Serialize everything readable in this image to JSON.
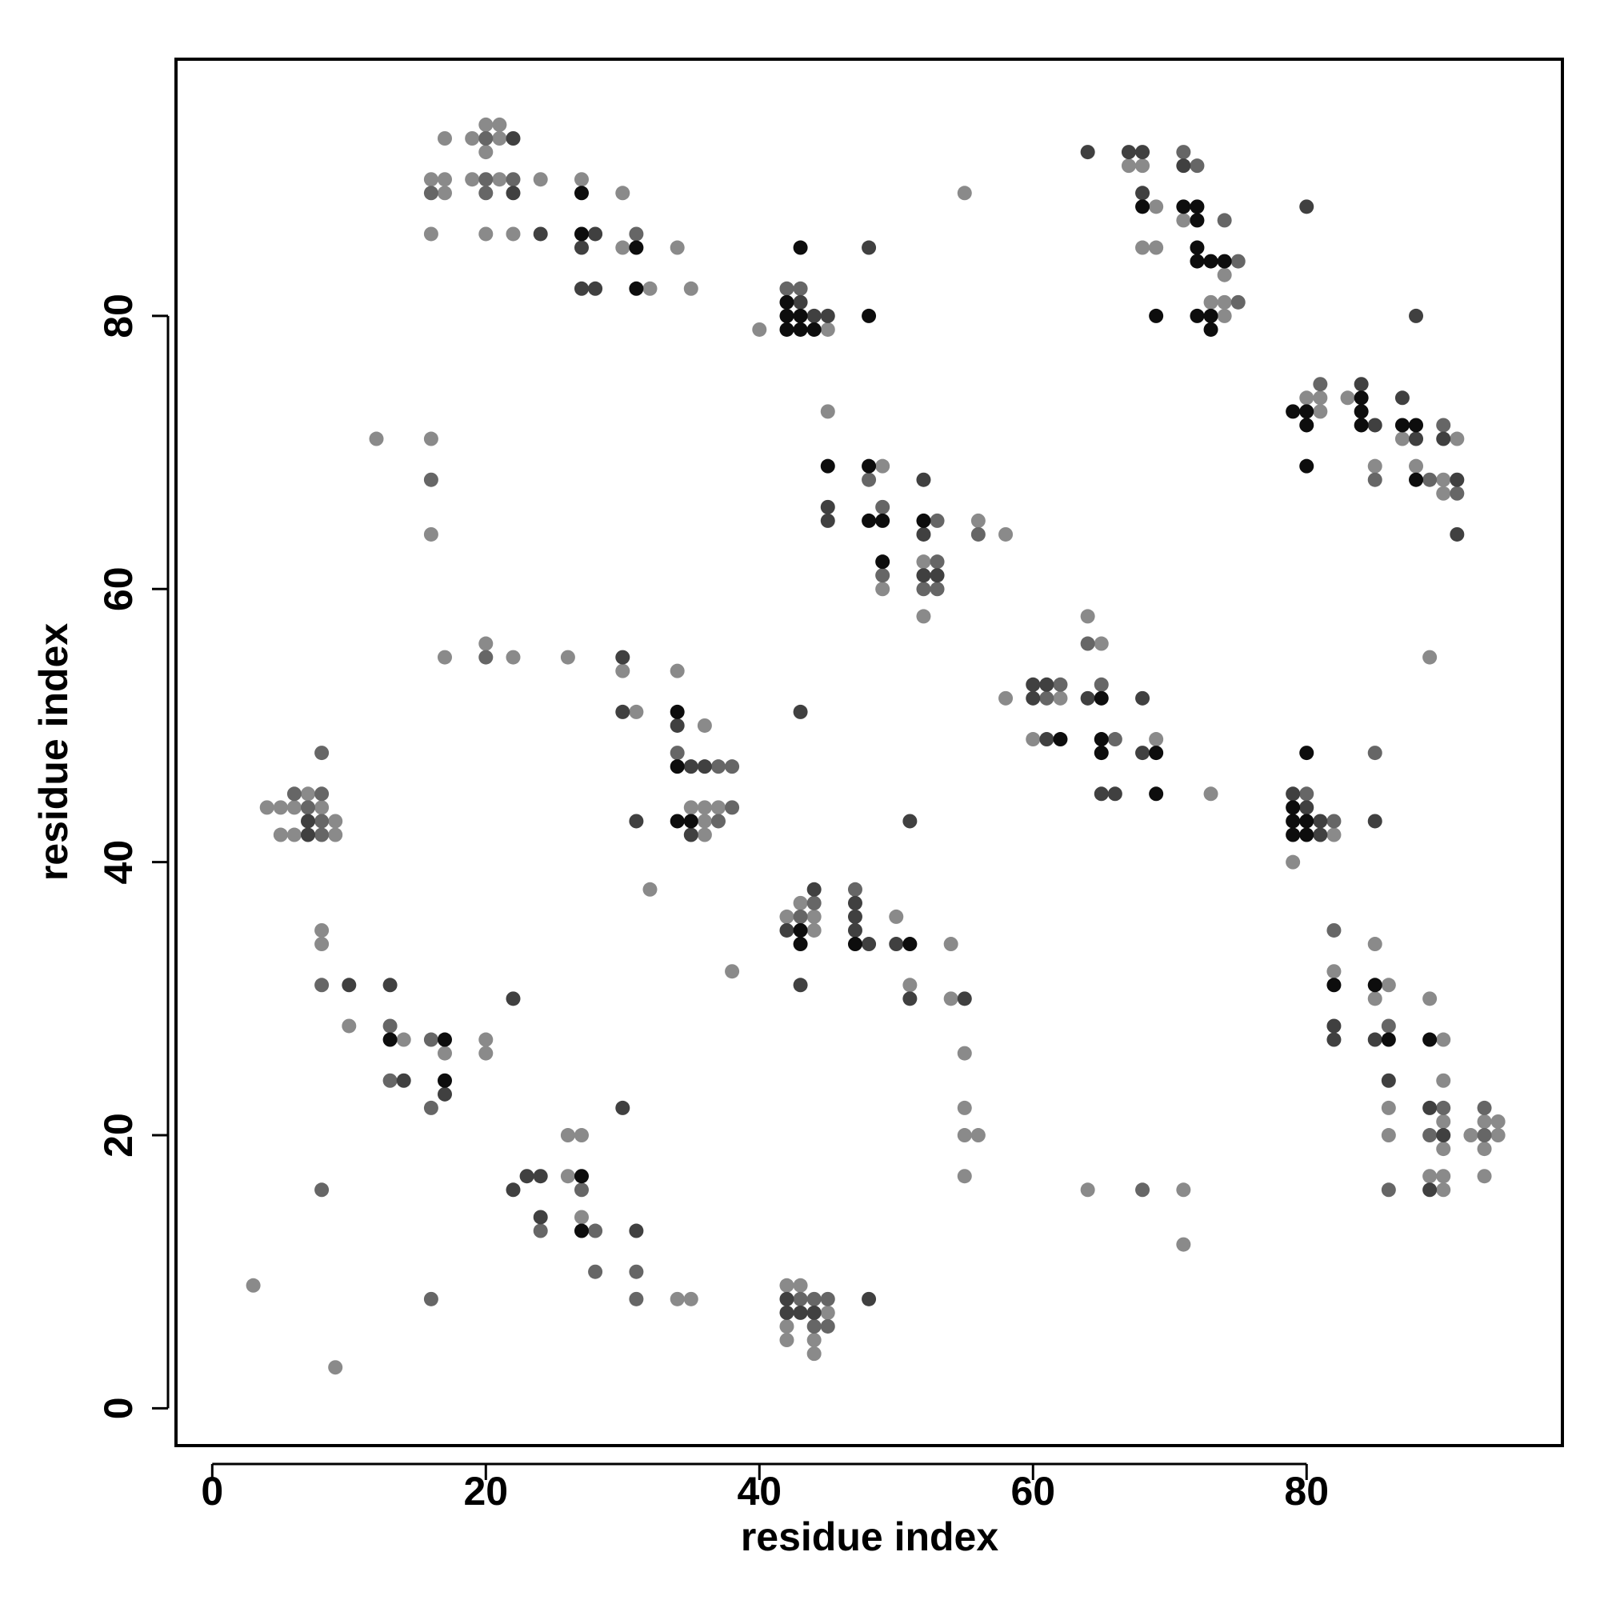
{
  "chart_data": {
    "type": "scatter",
    "x_label": "residue index",
    "y_label": "residue index",
    "xlim": [
      -2.65,
      98.7
    ],
    "ylim": [
      -2.73,
      98.8
    ],
    "xticks": [
      0,
      20,
      40,
      60,
      80
    ],
    "yticks": [
      0,
      20,
      40,
      60,
      80
    ],
    "series": [
      {
        "color": "#8a8a8a",
        "x": [
          17,
          19,
          20,
          21,
          21,
          20,
          16,
          17,
          19,
          21,
          24,
          27,
          17,
          30,
          16,
          20,
          22,
          30,
          34,
          32,
          35,
          40,
          45,
          67,
          68,
          69,
          71,
          68,
          69,
          74,
          73,
          74,
          74,
          55,
          80,
          81,
          83,
          81,
          87,
          91,
          85,
          88,
          90,
          90,
          45,
          49,
          56,
          58,
          52,
          49,
          52,
          12,
          16,
          16,
          17,
          20,
          22,
          26,
          30,
          34,
          89,
          31,
          36,
          35,
          36,
          37,
          36,
          36,
          32,
          38,
          64,
          65,
          58,
          62,
          60,
          69,
          73,
          82,
          79,
          7,
          4,
          5,
          6,
          8,
          9,
          5,
          6,
          9,
          43,
          42,
          44,
          50,
          44,
          54,
          51,
          54,
          55,
          55,
          55,
          56,
          55,
          8,
          8,
          10,
          14,
          20,
          17,
          20,
          26,
          27,
          26,
          27,
          34,
          35,
          3,
          9,
          42,
          43,
          45,
          42,
          42,
          44,
          44,
          64,
          71,
          71,
          82,
          85,
          86,
          85,
          89,
          90,
          90,
          86,
          90,
          93,
          94,
          86,
          92,
          94,
          90,
          93,
          89,
          90,
          93,
          90
        ],
        "y": [
          93,
          93,
          94,
          94,
          93,
          92,
          90,
          90,
          90,
          90,
          90,
          90,
          89,
          89,
          86,
          86,
          86,
          85,
          85,
          82,
          82,
          79,
          79,
          91,
          91,
          88,
          87,
          85,
          85,
          83,
          81,
          81,
          80,
          89,
          74,
          74,
          74,
          73,
          71,
          71,
          69,
          69,
          68,
          67,
          73,
          69,
          65,
          64,
          62,
          60,
          58,
          71,
          71,
          64,
          55,
          56,
          55,
          55,
          54,
          54,
          55,
          51,
          50,
          44,
          44,
          44,
          43,
          42,
          38,
          32,
          58,
          56,
          52,
          52,
          49,
          49,
          45,
          42,
          40,
          45,
          44,
          44,
          44,
          44,
          43,
          42,
          42,
          42,
          37,
          36,
          36,
          36,
          35,
          34,
          31,
          30,
          26,
          22,
          20,
          20,
          17,
          35,
          34,
          28,
          27,
          27,
          26,
          26,
          20,
          20,
          17,
          14,
          8,
          8,
          9,
          3,
          9,
          9,
          7,
          6,
          5,
          5,
          4,
          16,
          16,
          12,
          32,
          34,
          31,
          30,
          30,
          27,
          24,
          22,
          21,
          21,
          21,
          20,
          20,
          20,
          19,
          19,
          17,
          17,
          17,
          16
        ]
      },
      {
        "color": "#666666",
        "x": [
          20,
          20,
          22,
          16,
          20,
          31,
          42,
          43,
          71,
          72,
          74,
          75,
          75,
          81,
          90,
          85,
          89,
          91,
          48,
          49,
          53,
          56,
          53,
          49,
          52,
          53,
          16,
          20,
          34,
          37,
          38,
          38,
          37,
          64,
          62,
          65,
          61,
          66,
          85,
          80,
          82,
          8,
          6,
          8,
          7,
          8,
          8,
          47,
          44,
          43,
          8,
          13,
          16,
          13,
          16,
          8,
          27,
          24,
          28,
          28,
          31,
          16,
          31,
          43,
          44,
          45,
          44,
          45,
          68,
          82,
          86,
          90,
          93,
          89,
          93,
          86
        ],
        "y": [
          93,
          90,
          90,
          89,
          89,
          86,
          82,
          82,
          92,
          91,
          87,
          84,
          81,
          75,
          72,
          68,
          68,
          67,
          68,
          66,
          65,
          64,
          62,
          61,
          60,
          60,
          68,
          55,
          48,
          47,
          47,
          44,
          43,
          56,
          53,
          53,
          52,
          49,
          48,
          45,
          43,
          48,
          45,
          45,
          44,
          43,
          42,
          38,
          37,
          36,
          31,
          28,
          27,
          24,
          22,
          16,
          16,
          13,
          13,
          10,
          10,
          8,
          8,
          8,
          8,
          8,
          6,
          6,
          16,
          35,
          28,
          22,
          22,
          20,
          20,
          16
        ]
      },
      {
        "color": "#404040",
        "x": [
          22,
          22,
          24,
          28,
          27,
          27,
          28,
          43,
          44,
          45,
          48,
          64,
          67,
          68,
          71,
          68,
          84,
          87,
          85,
          88,
          90,
          91,
          91,
          80,
          88,
          52,
          45,
          45,
          52,
          52,
          53,
          30,
          30,
          43,
          34,
          35,
          36,
          31,
          35,
          61,
          60,
          60,
          64,
          68,
          61,
          68,
          65,
          66,
          79,
          80,
          81,
          85,
          81,
          51,
          7,
          7,
          44,
          47,
          47,
          42,
          47,
          48,
          50,
          43,
          51,
          55,
          10,
          13,
          22,
          14,
          17,
          30,
          23,
          24,
          22,
          24,
          31,
          42,
          48,
          42,
          43,
          44,
          82,
          82,
          85,
          86,
          89,
          90,
          89
        ],
        "y": [
          93,
          89,
          86,
          86,
          85,
          82,
          82,
          81,
          80,
          80,
          85,
          92,
          92,
          92,
          91,
          89,
          75,
          74,
          72,
          71,
          71,
          68,
          64,
          88,
          80,
          68,
          66,
          65,
          64,
          61,
          61,
          55,
          51,
          51,
          50,
          47,
          47,
          43,
          42,
          53,
          53,
          52,
          52,
          52,
          49,
          48,
          45,
          45,
          45,
          44,
          43,
          43,
          42,
          43,
          43,
          42,
          38,
          37,
          36,
          35,
          35,
          34,
          34,
          31,
          30,
          30,
          31,
          31,
          30,
          24,
          23,
          22,
          17,
          17,
          16,
          14,
          13,
          8,
          8,
          7,
          7,
          7,
          28,
          27,
          27,
          24,
          22,
          20,
          16
        ]
      },
      {
        "color": "#0d0d0d",
        "x": [
          27,
          27,
          31,
          31,
          43,
          42,
          42,
          43,
          48,
          42,
          43,
          44,
          68,
          71,
          72,
          72,
          72,
          73,
          72,
          74,
          69,
          72,
          73,
          73,
          84,
          79,
          80,
          84,
          80,
          84,
          87,
          88,
          80,
          88,
          45,
          48,
          48,
          49,
          52,
          49,
          34,
          34,
          34,
          35,
          62,
          65,
          65,
          65,
          69,
          69,
          80,
          79,
          79,
          80,
          79,
          80,
          43,
          43,
          47,
          51,
          13,
          17,
          17,
          27,
          27,
          82,
          85,
          86,
          89
        ],
        "y": [
          89,
          86,
          85,
          82,
          85,
          81,
          80,
          80,
          80,
          79,
          79,
          79,
          88,
          88,
          88,
          87,
          85,
          84,
          84,
          84,
          80,
          80,
          80,
          79,
          74,
          73,
          73,
          73,
          72,
          72,
          72,
          72,
          69,
          68,
          69,
          69,
          65,
          65,
          65,
          62,
          51,
          47,
          43,
          43,
          49,
          52,
          49,
          48,
          48,
          45,
          48,
          44,
          43,
          43,
          42,
          42,
          35,
          34,
          34,
          34,
          27,
          27,
          24,
          17,
          13,
          31,
          31,
          27,
          27
        ]
      }
    ]
  }
}
